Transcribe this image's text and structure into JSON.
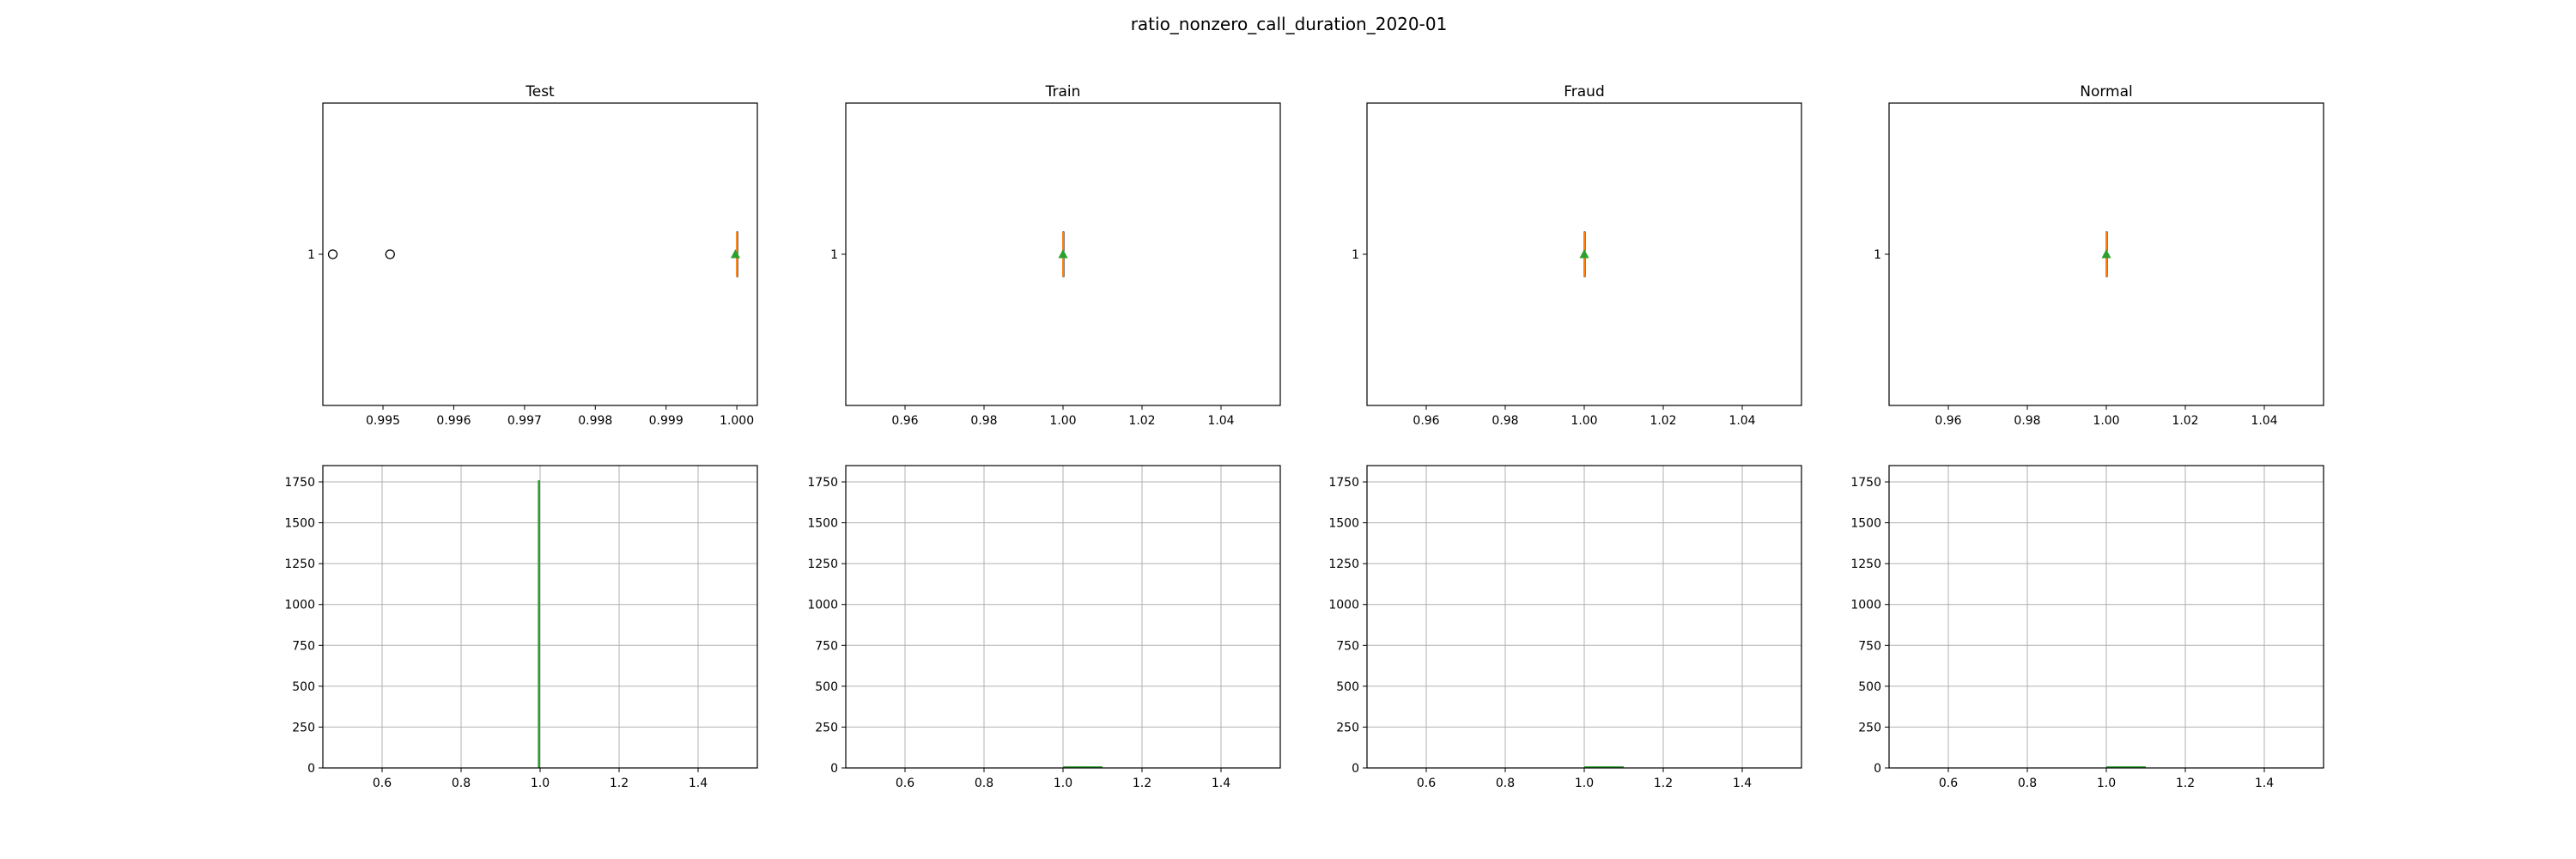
{
  "figure": {
    "title": "ratio_nonzero_call_duration_2020-01"
  },
  "colors": {
    "box_median": "#ff7f0e",
    "mean_marker": "#2ca02c",
    "hist_bar": "#2ca02c",
    "grid": "#b0b0b0"
  },
  "chart_data": [
    {
      "type": "box",
      "title": "Test",
      "ylabel_tick": "1",
      "xlim": [
        0.99415,
        1.00029
      ],
      "xticks": [
        0.995,
        0.996,
        0.997,
        0.998,
        0.999,
        1.0
      ],
      "xtick_labels": [
        "0.995",
        "0.996",
        "0.997",
        "0.998",
        "0.999",
        "1.000"
      ],
      "box": {
        "q1": 1.0,
        "median": 1.0,
        "q3": 1.0,
        "whisker_low": 1.0,
        "whisker_high": 1.0,
        "mean": 0.99998
      },
      "outliers": [
        0.99429,
        0.9951
      ]
    },
    {
      "type": "box",
      "title": "Train",
      "ylabel_tick": "1",
      "xlim": [
        0.945,
        1.055
      ],
      "xticks": [
        0.96,
        0.98,
        1.0,
        1.02,
        1.04
      ],
      "xtick_labels": [
        "0.96",
        "0.98",
        "1.00",
        "1.02",
        "1.04"
      ],
      "box": {
        "q1": 1.0,
        "median": 1.0,
        "q3": 1.0,
        "whisker_low": 1.0,
        "whisker_high": 1.0,
        "mean": 1.0
      },
      "outliers": []
    },
    {
      "type": "box",
      "title": "Fraud",
      "ylabel_tick": "1",
      "xlim": [
        0.945,
        1.055
      ],
      "xticks": [
        0.96,
        0.98,
        1.0,
        1.02,
        1.04
      ],
      "xtick_labels": [
        "0.96",
        "0.98",
        "1.00",
        "1.02",
        "1.04"
      ],
      "box": {
        "q1": 1.0,
        "median": 1.0,
        "q3": 1.0,
        "whisker_low": 1.0,
        "whisker_high": 1.0,
        "mean": 1.0
      },
      "outliers": []
    },
    {
      "type": "box",
      "title": "Normal",
      "ylabel_tick": "1",
      "xlim": [
        0.945,
        1.055
      ],
      "xticks": [
        0.96,
        0.98,
        1.0,
        1.02,
        1.04
      ],
      "xtick_labels": [
        "0.96",
        "0.98",
        "1.00",
        "1.02",
        "1.04"
      ],
      "box": {
        "q1": 1.0,
        "median": 1.0,
        "q3": 1.0,
        "whisker_low": 1.0,
        "whisker_high": 1.0,
        "mean": 1.0
      },
      "outliers": []
    },
    {
      "type": "bar",
      "subtype": "histogram",
      "grid": true,
      "xlim": [
        0.45,
        1.55
      ],
      "ylim": [
        0,
        1850
      ],
      "xticks": [
        0.6,
        0.8,
        1.0,
        1.2,
        1.4
      ],
      "xtick_labels": [
        "0.6",
        "0.8",
        "1.0",
        "1.2",
        "1.4"
      ],
      "yticks": [
        0,
        250,
        500,
        750,
        1000,
        1250,
        1500,
        1750
      ],
      "ytick_labels": [
        "0",
        "250",
        "500",
        "750",
        "1000",
        "1250",
        "1500",
        "1750"
      ],
      "bins": [
        {
          "start": 0.99429,
          "end": 1.0,
          "count": 1760
        }
      ]
    },
    {
      "type": "bar",
      "subtype": "histogram",
      "grid": true,
      "xlim": [
        0.45,
        1.55
      ],
      "ylim": [
        0,
        1850
      ],
      "xticks": [
        0.6,
        0.8,
        1.0,
        1.2,
        1.4
      ],
      "xtick_labels": [
        "0.6",
        "0.8",
        "1.0",
        "1.2",
        "1.4"
      ],
      "yticks": [
        0,
        250,
        500,
        750,
        1000,
        1250,
        1500,
        1750
      ],
      "ytick_labels": [
        "0",
        "250",
        "500",
        "750",
        "1000",
        "1250",
        "1500",
        "1750"
      ],
      "bins": [
        {
          "start": 1.0,
          "end": 1.1,
          "count": 10
        }
      ]
    },
    {
      "type": "bar",
      "subtype": "histogram",
      "grid": true,
      "xlim": [
        0.45,
        1.55
      ],
      "ylim": [
        0,
        1850
      ],
      "xticks": [
        0.6,
        0.8,
        1.0,
        1.2,
        1.4
      ],
      "xtick_labels": [
        "0.6",
        "0.8",
        "1.0",
        "1.2",
        "1.4"
      ],
      "yticks": [
        0,
        250,
        500,
        750,
        1000,
        1250,
        1500,
        1750
      ],
      "ytick_labels": [
        "0",
        "250",
        "500",
        "750",
        "1000",
        "1250",
        "1500",
        "1750"
      ],
      "bins": [
        {
          "start": 1.0,
          "end": 1.1,
          "count": 10
        }
      ]
    },
    {
      "type": "bar",
      "subtype": "histogram",
      "grid": true,
      "xlim": [
        0.45,
        1.55
      ],
      "ylim": [
        0,
        1850
      ],
      "xticks": [
        0.6,
        0.8,
        1.0,
        1.2,
        1.4
      ],
      "xtick_labels": [
        "0.6",
        "0.8",
        "1.0",
        "1.2",
        "1.4"
      ],
      "yticks": [
        0,
        250,
        500,
        750,
        1000,
        1250,
        1500,
        1750
      ],
      "ytick_labels": [
        "0",
        "250",
        "500",
        "750",
        "1000",
        "1250",
        "1500",
        "1750"
      ],
      "bins": [
        {
          "start": 1.0,
          "end": 1.1,
          "count": 10
        }
      ]
    }
  ]
}
